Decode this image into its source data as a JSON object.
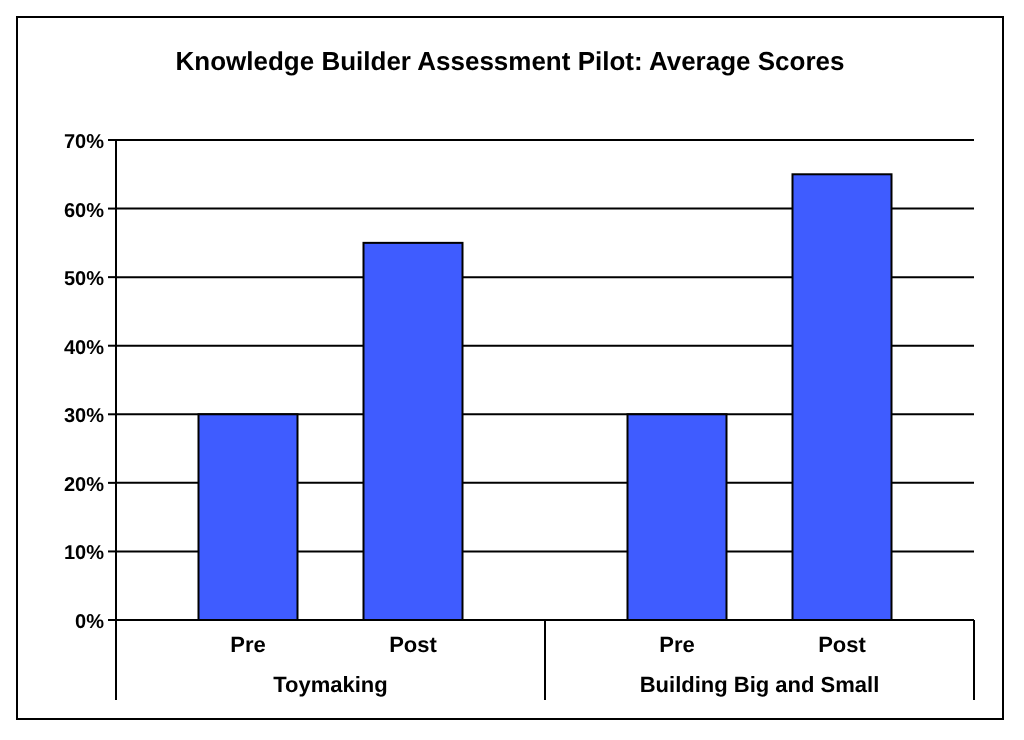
{
  "chart_data": {
    "type": "bar",
    "title": "Knowledge Builder Assessment Pilot: Average Scores",
    "categories": [
      "Toymaking",
      "Building Big and Small"
    ],
    "series": [
      {
        "name": "Pre",
        "color": "#3f5cff",
        "values": [
          30,
          30
        ]
      },
      {
        "name": "Post",
        "color": "#3f5cff",
        "values": [
          55,
          65
        ]
      }
    ],
    "ylim": [
      0,
      70
    ],
    "yticks": [
      {
        "value": 0,
        "label": "0%"
      },
      {
        "value": 10,
        "label": "10%"
      },
      {
        "value": 20,
        "label": "20%"
      },
      {
        "value": 30,
        "label": "30%"
      },
      {
        "value": 40,
        "label": "40%"
      },
      {
        "value": 50,
        "label": "50%"
      },
      {
        "value": 60,
        "label": "60%"
      },
      {
        "value": 70,
        "label": "70%"
      }
    ],
    "grid": "y"
  }
}
